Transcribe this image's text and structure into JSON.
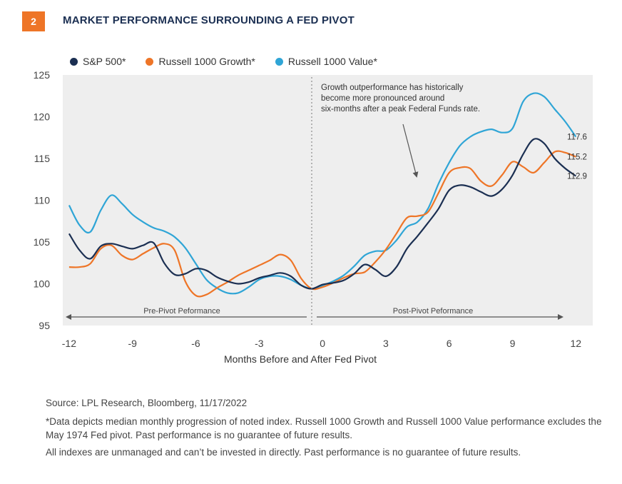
{
  "header": {
    "number": "2",
    "title": "MARKET PERFORMANCE SURROUNDING A FED PIVOT"
  },
  "colors": {
    "sp500": "#1b2f52",
    "growth": "#ee7527",
    "value": "#2fa5d6",
    "badge": "#ee7527",
    "plot_bg": "#eeeeee"
  },
  "chart_data": {
    "type": "line",
    "title": "MARKET PERFORMANCE SURROUNDING A FED PIVOT",
    "xlabel": "Months Before and After Fed Pivot",
    "ylabel": "",
    "xlim": [
      -12.3,
      12.8
    ],
    "ylim": [
      95,
      125
    ],
    "x_ticks": [
      "-12",
      "-9",
      "-6",
      "-3",
      "0",
      "3",
      "6",
      "9",
      "12"
    ],
    "y_ticks": [
      "95",
      "100",
      "105",
      "110",
      "115",
      "120",
      "125"
    ],
    "legend_position": "top-left",
    "grid": false,
    "series": [
      {
        "name": "S&P 500*",
        "color": "#1b2f52",
        "points": [
          [
            -12,
            106
          ],
          [
            -11.5,
            104
          ],
          [
            -11,
            103
          ],
          [
            -10.5,
            104.5
          ],
          [
            -10,
            104.8
          ],
          [
            -9.5,
            104.5
          ],
          [
            -9,
            104.2
          ],
          [
            -8.5,
            104.6
          ],
          [
            -8,
            104.9
          ],
          [
            -7.5,
            102.5
          ],
          [
            -7,
            101.1
          ],
          [
            -6.5,
            101.2
          ],
          [
            -6,
            101.8
          ],
          [
            -5.5,
            101.6
          ],
          [
            -5,
            100.8
          ],
          [
            -4.5,
            100.3
          ],
          [
            -4,
            100
          ],
          [
            -3.5,
            100.2
          ],
          [
            -3,
            100.7
          ],
          [
            -2.5,
            101
          ],
          [
            -2,
            101.3
          ],
          [
            -1.5,
            100.9
          ],
          [
            -1,
            99.8
          ],
          [
            -0.5,
            99.4
          ],
          [
            0,
            99.9
          ],
          [
            0.5,
            100.1
          ],
          [
            1,
            100.4
          ],
          [
            1.5,
            101.2
          ],
          [
            2,
            102.3
          ],
          [
            2.5,
            101.7
          ],
          [
            3,
            100.9
          ],
          [
            3.5,
            102
          ],
          [
            4,
            104.2
          ],
          [
            4.5,
            105.7
          ],
          [
            5,
            107.3
          ],
          [
            5.5,
            109
          ],
          [
            6,
            111.2
          ],
          [
            6.5,
            111.8
          ],
          [
            7,
            111.6
          ],
          [
            7.5,
            111
          ],
          [
            8,
            110.5
          ],
          [
            8.5,
            111.3
          ],
          [
            9,
            113
          ],
          [
            9.5,
            115.5
          ],
          [
            10,
            117.3
          ],
          [
            10.5,
            116.8
          ],
          [
            11,
            115
          ],
          [
            11.5,
            113.8
          ],
          [
            12,
            112.9
          ]
        ]
      },
      {
        "name": "Russell 1000 Growth*",
        "color": "#ee7527",
        "points": [
          [
            -12,
            102
          ],
          [
            -11.5,
            102
          ],
          [
            -11,
            102.4
          ],
          [
            -10.5,
            104.2
          ],
          [
            -10,
            104.6
          ],
          [
            -9.5,
            103.4
          ],
          [
            -9,
            102.9
          ],
          [
            -8.5,
            103.6
          ],
          [
            -8,
            104.3
          ],
          [
            -7.5,
            104.8
          ],
          [
            -7,
            104
          ],
          [
            -6.5,
            100.3
          ],
          [
            -6,
            98.6
          ],
          [
            -5.5,
            98.7
          ],
          [
            -5,
            99.5
          ],
          [
            -4.5,
            100.2
          ],
          [
            -4,
            101
          ],
          [
            -3.5,
            101.6
          ],
          [
            -3,
            102.2
          ],
          [
            -2.5,
            102.8
          ],
          [
            -2,
            103.5
          ],
          [
            -1.5,
            102.8
          ],
          [
            -1,
            100.6
          ],
          [
            -0.5,
            99.4
          ],
          [
            0,
            99.6
          ],
          [
            0.5,
            100.1
          ],
          [
            1,
            100.7
          ],
          [
            1.5,
            101.2
          ],
          [
            2,
            101.4
          ],
          [
            2.5,
            102.6
          ],
          [
            3,
            104.1
          ],
          [
            3.5,
            106
          ],
          [
            4,
            107.9
          ],
          [
            4.5,
            108.1
          ],
          [
            5,
            108.6
          ],
          [
            5.5,
            110.9
          ],
          [
            6,
            113.3
          ],
          [
            6.5,
            113.9
          ],
          [
            7,
            113.8
          ],
          [
            7.5,
            112.3
          ],
          [
            8,
            111.7
          ],
          [
            8.5,
            113
          ],
          [
            9,
            114.6
          ],
          [
            9.5,
            114
          ],
          [
            10,
            113.3
          ],
          [
            10.5,
            114.5
          ],
          [
            11,
            115.8
          ],
          [
            11.5,
            115.7
          ],
          [
            12,
            115.2
          ]
        ]
      },
      {
        "name": "Russell 1000 Value*",
        "color": "#2fa5d6",
        "points": [
          [
            -12,
            109.4
          ],
          [
            -11.5,
            107
          ],
          [
            -11,
            106.2
          ],
          [
            -10.5,
            108.8
          ],
          [
            -10,
            110.6
          ],
          [
            -9.5,
            109.6
          ],
          [
            -9,
            108.3
          ],
          [
            -8.5,
            107.4
          ],
          [
            -8,
            106.7
          ],
          [
            -7.5,
            106.3
          ],
          [
            -7,
            105.6
          ],
          [
            -6.5,
            104.3
          ],
          [
            -6,
            102.4
          ],
          [
            -5.5,
            100.5
          ],
          [
            -5,
            99.5
          ],
          [
            -4.5,
            98.9
          ],
          [
            -4,
            98.9
          ],
          [
            -3.5,
            99.6
          ],
          [
            -3,
            100.5
          ],
          [
            -2.5,
            100.9
          ],
          [
            -2,
            100.9
          ],
          [
            -1.5,
            100.5
          ],
          [
            -1,
            99.8
          ],
          [
            -0.5,
            99.4
          ],
          [
            0,
            99.8
          ],
          [
            0.5,
            100.3
          ],
          [
            1,
            101
          ],
          [
            1.5,
            102.1
          ],
          [
            2,
            103.4
          ],
          [
            2.5,
            103.9
          ],
          [
            3,
            104
          ],
          [
            3.5,
            105.2
          ],
          [
            4,
            106.8
          ],
          [
            4.5,
            107.4
          ],
          [
            5,
            109
          ],
          [
            5.5,
            112
          ],
          [
            6,
            114.5
          ],
          [
            6.5,
            116.5
          ],
          [
            7,
            117.6
          ],
          [
            7.5,
            118.2
          ],
          [
            8,
            118.5
          ],
          [
            8.5,
            118.1
          ],
          [
            9,
            118.6
          ],
          [
            9.5,
            121.8
          ],
          [
            10,
            122.8
          ],
          [
            10.5,
            122.4
          ],
          [
            11,
            120.9
          ],
          [
            11.5,
            119.4
          ],
          [
            12,
            117.6
          ]
        ]
      }
    ],
    "end_labels": [
      {
        "series": "Russell 1000 Value*",
        "text": "117.6",
        "value": 117.6
      },
      {
        "series": "Russell 1000 Growth*",
        "text": "115.2",
        "value": 115.2
      },
      {
        "series": "S&P 500*",
        "text": "112.9",
        "value": 112.9
      }
    ],
    "annotations": {
      "callout": [
        "Growth outperformance has historically",
        "become more pronounced around",
        "six-months after a peak Federal Funds rate."
      ],
      "pre_pivot": "Pre-Pivot Peformance",
      "post_pivot": "Post-Pivot Peformance"
    }
  },
  "footer": {
    "source": "Source: LPL Research, Bloomberg,  11/17/2022",
    "note1": "*Data depicts median monthly progression of noted index. Russell 1000 Growth and Russell 1000 Value performance excludes the May 1974 Fed pivot. Past performance is no guarantee of future results.",
    "note2": "All indexes are unmanaged and can’t be invested in directly. Past performance is no guarantee of future results."
  }
}
